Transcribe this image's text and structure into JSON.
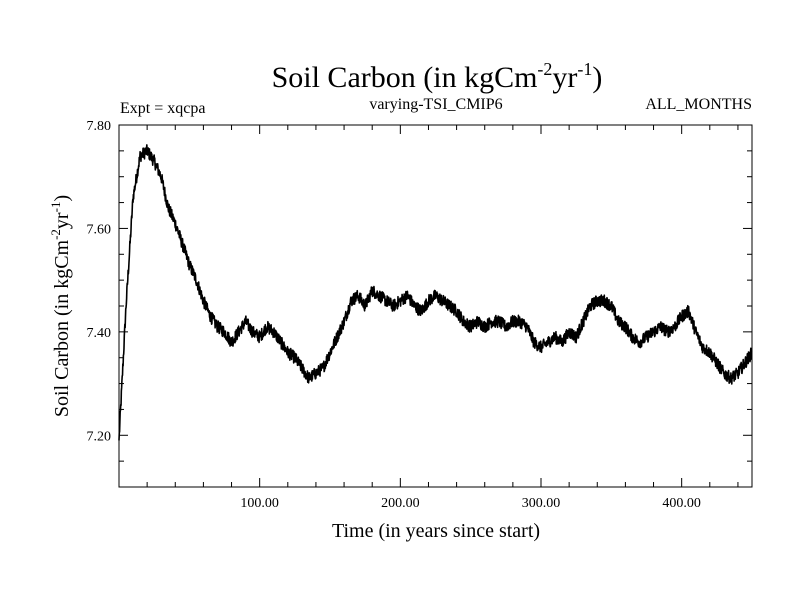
{
  "chart_data": {
    "type": "line",
    "title_main": "Soil Carbon (in kgCm",
    "title_sup1": "-2",
    "title_mid": "yr",
    "title_sup2": "-1",
    "title_end": ")",
    "subtitle_left": "Expt = xqcpa",
    "subtitle_center": "varying-TSI_CMIP6",
    "subtitle_right": "ALL_MONTHS",
    "xlabel": "Time (in years since start)",
    "ylabel_main": "Soil Carbon (in kgCm",
    "ylabel_sup1": "-2",
    "ylabel_mid": "yr",
    "ylabel_sup2": "-1",
    "ylabel_end": ")",
    "xlim": [
      0,
      450
    ],
    "ylim": [
      7.1,
      7.8
    ],
    "x_ticks": [
      {
        "value": 100,
        "label": "100.00"
      },
      {
        "value": 200,
        "label": "200.00"
      },
      {
        "value": 300,
        "label": "300.00"
      },
      {
        "value": 400,
        "label": "400.00"
      }
    ],
    "y_ticks": [
      {
        "value": 7.2,
        "label": "7.20"
      },
      {
        "value": 7.4,
        "label": "7.40"
      },
      {
        "value": 7.6,
        "label": "7.60"
      },
      {
        "value": 7.8,
        "label": "7.80"
      }
    ],
    "noise_amplitude": 0.012,
    "series": [
      {
        "name": "Soil Carbon",
        "color": "#000000",
        "x": [
          0,
          5,
          10,
          15,
          20,
          25,
          30,
          35,
          40,
          45,
          50,
          55,
          60,
          65,
          70,
          75,
          80,
          85,
          90,
          95,
          100,
          105,
          110,
          115,
          120,
          125,
          130,
          135,
          140,
          145,
          150,
          155,
          160,
          165,
          170,
          175,
          180,
          185,
          190,
          195,
          200,
          205,
          210,
          215,
          220,
          225,
          230,
          235,
          240,
          245,
          250,
          255,
          260,
          265,
          270,
          275,
          280,
          285,
          290,
          295,
          300,
          305,
          310,
          315,
          320,
          325,
          330,
          335,
          340,
          345,
          350,
          355,
          360,
          365,
          370,
          375,
          380,
          385,
          390,
          395,
          400,
          405,
          410,
          415,
          420,
          425,
          430,
          435,
          440,
          445,
          450
        ],
        "values": [
          7.19,
          7.45,
          7.66,
          7.74,
          7.75,
          7.73,
          7.7,
          7.64,
          7.61,
          7.57,
          7.53,
          7.5,
          7.46,
          7.43,
          7.41,
          7.4,
          7.38,
          7.4,
          7.42,
          7.4,
          7.39,
          7.41,
          7.4,
          7.38,
          7.36,
          7.35,
          7.33,
          7.31,
          7.32,
          7.33,
          7.36,
          7.39,
          7.42,
          7.46,
          7.47,
          7.45,
          7.48,
          7.47,
          7.46,
          7.45,
          7.46,
          7.47,
          7.45,
          7.44,
          7.46,
          7.47,
          7.46,
          7.45,
          7.44,
          7.42,
          7.41,
          7.42,
          7.41,
          7.42,
          7.42,
          7.41,
          7.42,
          7.42,
          7.41,
          7.38,
          7.37,
          7.38,
          7.39,
          7.38,
          7.4,
          7.39,
          7.42,
          7.45,
          7.46,
          7.46,
          7.45,
          7.42,
          7.41,
          7.39,
          7.38,
          7.39,
          7.4,
          7.41,
          7.4,
          7.41,
          7.43,
          7.44,
          7.4,
          7.37,
          7.36,
          7.34,
          7.32,
          7.31,
          7.32,
          7.34,
          7.36
        ]
      }
    ]
  }
}
